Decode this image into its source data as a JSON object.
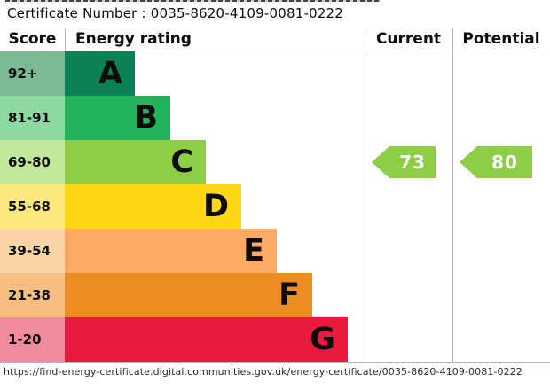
{
  "certificate_label": "Certificate Number : 0035-8620-4109-0081-0222",
  "url": "https://find-energy-certificate.digital.communities.gov.uk/energy-certificate/0035-8620-4109-0081-0222",
  "headers": {
    "score": "Score",
    "rating": "Energy rating",
    "current": "Current",
    "potential": "Potential"
  },
  "chart_data": {
    "type": "bar",
    "orientation": "horizontal",
    "title": "Energy rating",
    "categories": [
      "A",
      "B",
      "C",
      "D",
      "E",
      "F",
      "G"
    ],
    "score_ranges": [
      "92+",
      "81-91",
      "69-80",
      "55-68",
      "39-54",
      "21-38",
      "1-20"
    ],
    "bands": [
      {
        "letter": "A",
        "range": "92+",
        "color": "#0a8254",
        "score_bg": "#7eb995"
      },
      {
        "letter": "B",
        "range": "81-91",
        "color": "#22b35b",
        "score_bg": "#8cd9a2"
      },
      {
        "letter": "C",
        "range": "69-80",
        "color": "#8dce46",
        "score_bg": "#c2e69b"
      },
      {
        "letter": "D",
        "range": "55-68",
        "color": "#fed712",
        "score_bg": "#fee87e"
      },
      {
        "letter": "E",
        "range": "39-54",
        "color": "#fcaa65",
        "score_bg": "#fcd3a7"
      },
      {
        "letter": "F",
        "range": "21-38",
        "color": "#ef8d22",
        "score_bg": "#f6bf81"
      },
      {
        "letter": "G",
        "range": "1-20",
        "color": "#e61b3f",
        "score_bg": "#f08b9d"
      }
    ],
    "current": {
      "label": "Current",
      "value": 73,
      "band": "C",
      "arrow_color": "#8dce46"
    },
    "potential": {
      "label": "Potential",
      "value": 80,
      "band": "C",
      "arrow_color": "#8dce46"
    }
  }
}
